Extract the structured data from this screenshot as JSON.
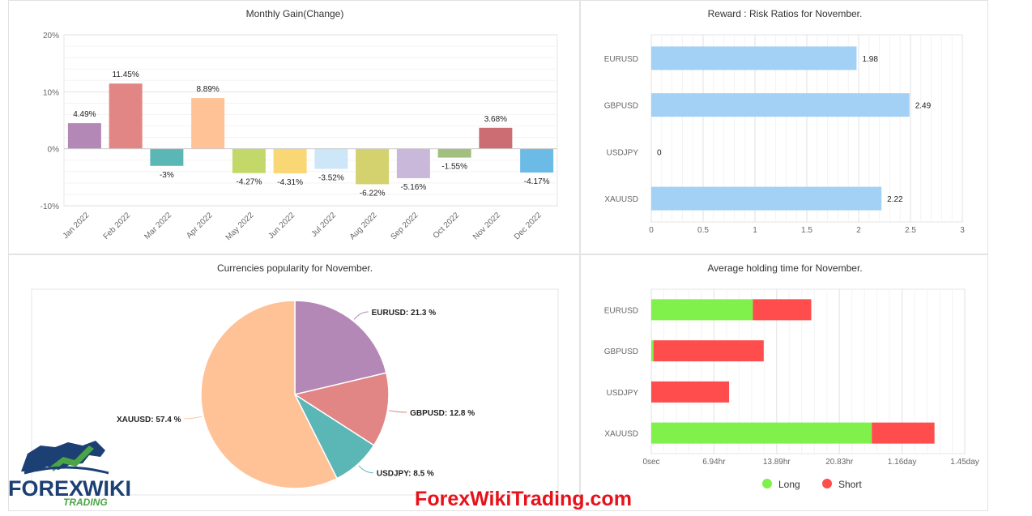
{
  "colors": {
    "long": "#7ff14a",
    "short": "#ff4c4c",
    "reward_bar": "#a3d0f5",
    "pie": [
      "#b488b6",
      "#e18585",
      "#5bb6b6",
      "#ffc196"
    ],
    "monthly": [
      "#b488b6",
      "#e18585",
      "#5bb6b6",
      "#ffc196",
      "#c2d96a",
      "#f8d774",
      "#cde6f8",
      "#d4d26e",
      "#c9b8da",
      "#a3bf7f",
      "#cc6d73",
      "#6cbbe6"
    ]
  },
  "chart_data": [
    {
      "type": "bar",
      "title": "Monthly Gain(Change)",
      "categories": [
        "Jan 2022",
        "Feb 2022",
        "Mar 2022",
        "Apr 2022",
        "May 2022",
        "Jun 2022",
        "Jul 2022",
        "Aug 2022",
        "Sep 2022",
        "Oct 2022",
        "Nov 2022",
        "Dec 2022"
      ],
      "values": [
        4.49,
        11.45,
        -3,
        8.89,
        -4.27,
        -4.31,
        -3.52,
        -6.22,
        -5.16,
        -1.55,
        3.68,
        -4.17
      ],
      "value_labels": [
        "4.49%",
        "11.45%",
        "-3%",
        "8.89%",
        "-4.27%",
        "-4.31%",
        "-3.52%",
        "-6.22%",
        "-5.16%",
        "-1.55%",
        "3.68%",
        "-4.17%"
      ],
      "ylim": [
        -10,
        20
      ],
      "yticks": [
        -10,
        0,
        10,
        20
      ],
      "ytick_labels": [
        "-10%",
        "0%",
        "10%",
        "20%"
      ],
      "grid": true
    },
    {
      "type": "bar",
      "orientation": "horizontal",
      "title": "Reward : Risk Ratios for November.",
      "categories": [
        "EURUSD",
        "GBPUSD",
        "USDJPY",
        "XAUUSD"
      ],
      "values": [
        1.98,
        2.49,
        0,
        2.22
      ],
      "value_labels": [
        "1.98",
        "2.49",
        "0",
        "2.22"
      ],
      "xlim": [
        0,
        3
      ],
      "xticks": [
        0,
        0.5,
        1,
        1.5,
        2,
        2.5,
        3
      ],
      "xtick_labels": [
        "0",
        "0.5",
        "1",
        "1.5",
        "2",
        "2.5",
        "3"
      ],
      "grid": true
    },
    {
      "type": "pie",
      "title": "Currencies popularity for November.",
      "labels": [
        "EURUSD",
        "GBPUSD",
        "USDJPY",
        "XAUUSD"
      ],
      "values": [
        21.3,
        12.8,
        8.5,
        57.4
      ],
      "slice_labels": [
        "EURUSD: 21.3 %",
        "GBPUSD: 12.8 %",
        "USDJPY: 8.5 %",
        "XAUUSD: 57.4 %"
      ]
    },
    {
      "type": "bar",
      "orientation": "horizontal",
      "stacked": true,
      "title": "Average holding time for November.",
      "categories": [
        "EURUSD",
        "GBPUSD",
        "USDJPY",
        "XAUUSD"
      ],
      "xlim": [
        0,
        1.45
      ],
      "xunit": "days",
      "xticks": [
        0,
        0.29,
        0.58,
        0.87,
        1.16,
        1.45
      ],
      "xtick_labels": [
        "0sec",
        "6.94hr",
        "13.89hr",
        "20.83hr",
        "1.16day",
        "1.45day"
      ],
      "series": [
        {
          "name": "Long",
          "values": [
            0.47,
            0.01,
            0,
            1.02
          ]
        },
        {
          "name": "Short",
          "values": [
            0.27,
            0.51,
            0.36,
            0.29
          ]
        }
      ],
      "legend": "bottom",
      "grid": true
    }
  ],
  "watermark": {
    "text": "ForexWikiTrading.com"
  },
  "logo": {
    "word1": "FOREX",
    "word2": "WIKI",
    "word3": "TRADING"
  }
}
